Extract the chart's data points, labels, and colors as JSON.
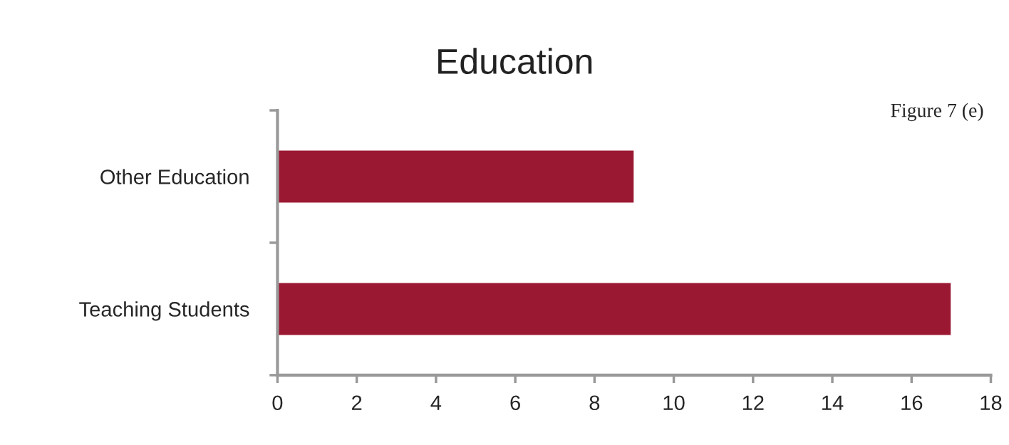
{
  "chart_data": {
    "type": "bar",
    "orientation": "horizontal",
    "title": "Education",
    "categories": [
      "Other Education",
      "Teaching Students"
    ],
    "values": [
      9,
      17
    ],
    "color": "#9b1832",
    "xlim": [
      0,
      18
    ],
    "xticks": [
      0,
      2,
      4,
      6,
      8,
      10,
      12,
      14,
      16,
      18
    ],
    "grid": false,
    "annotations": [
      "Figure 7 (e)"
    ]
  }
}
